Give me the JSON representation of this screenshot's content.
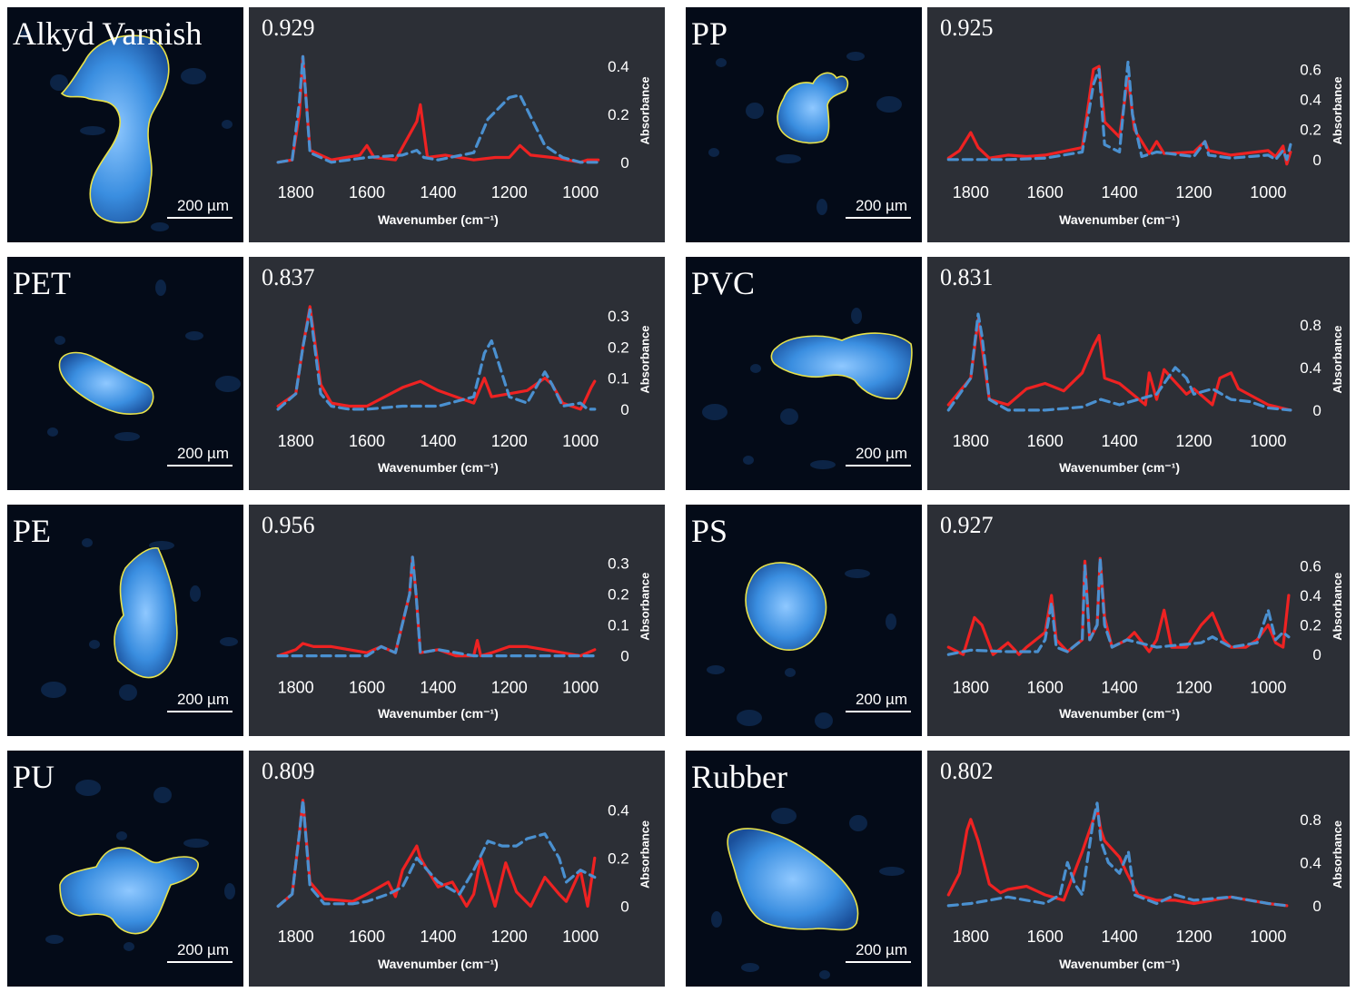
{
  "figure": {
    "scale_label": "200 µm",
    "xlabel": "Wavenumber (cm⁻¹)",
    "ylabel": "Absorbance",
    "series_colors": {
      "measured": "#ee2222",
      "reference": "#4a90d0"
    },
    "particle_color": "#3a8ee0",
    "outline_color": "#e8e24a"
  },
  "chart_data": [
    {
      "type": "line",
      "name": "Alkyd Varnish",
      "score": "0.929",
      "xlabel": "Wavenumber (cm⁻¹)",
      "ylabel": "Absorbance",
      "xlim": [
        1850,
        950
      ],
      "ylim": [
        -0.02,
        0.45
      ],
      "xticks": [
        1800,
        1600,
        1400,
        1200,
        1000
      ],
      "yticks": [
        0,
        0.2,
        0.4
      ],
      "series": [
        {
          "x": [
            1850,
            1810,
            1790,
            1780,
            1760,
            1700,
            1620,
            1600,
            1580,
            1520,
            1460,
            1450,
            1430,
            1380,
            1300,
            1240,
            1200,
            1170,
            1140,
            1080,
            1000,
            980,
            950
          ],
          "y": [
            0,
            0.01,
            0.2,
            0.44,
            0.05,
            0.01,
            0.03,
            0.07,
            0.02,
            0.01,
            0.17,
            0.24,
            0.02,
            0.03,
            0.01,
            0.02,
            0.02,
            0.07,
            0.03,
            0.02,
            0.0,
            0.01,
            0.01
          ]
        },
        {
          "x": [
            1850,
            1810,
            1790,
            1780,
            1760,
            1700,
            1600,
            1500,
            1460,
            1440,
            1400,
            1300,
            1260,
            1200,
            1170,
            1150,
            1100,
            1050,
            1000,
            950
          ],
          "y": [
            0,
            0.01,
            0.25,
            0.44,
            0.04,
            0.0,
            0.02,
            0.03,
            0.05,
            0.02,
            0.01,
            0.04,
            0.18,
            0.27,
            0.28,
            0.22,
            0.07,
            0.02,
            0.0,
            0.0
          ]
        }
      ]
    },
    {
      "type": "line",
      "name": "PP",
      "score": "0.925",
      "xlim": [
        1860,
        940
      ],
      "ylim": [
        -0.05,
        0.7
      ],
      "xticks": [
        1800,
        1600,
        1400,
        1200,
        1000
      ],
      "yticks": [
        0,
        0.2,
        0.4,
        0.6
      ],
      "series": [
        {
          "x": [
            1860,
            1830,
            1800,
            1780,
            1750,
            1700,
            1650,
            1600,
            1500,
            1470,
            1455,
            1440,
            1400,
            1377,
            1360,
            1320,
            1300,
            1280,
            1200,
            1170,
            1160,
            1100,
            1000,
            980,
            960,
            950,
            940
          ],
          "y": [
            0.01,
            0.06,
            0.18,
            0.08,
            0.01,
            0.03,
            0.02,
            0.03,
            0.08,
            0.6,
            0.62,
            0.25,
            0.15,
            0.55,
            0.2,
            0.04,
            0.12,
            0.04,
            0.05,
            0.12,
            0.06,
            0.03,
            0.06,
            0.02,
            0.09,
            -0.03,
            0.05
          ]
        },
        {
          "x": [
            1860,
            1700,
            1600,
            1500,
            1470,
            1455,
            1440,
            1400,
            1377,
            1365,
            1340,
            1300,
            1200,
            1170,
            1160,
            1100,
            1000,
            980,
            960,
            950,
            940
          ],
          "y": [
            0,
            0.0,
            0.01,
            0.05,
            0.5,
            0.6,
            0.1,
            0.05,
            0.65,
            0.3,
            0.02,
            0.05,
            0.02,
            0.12,
            0.03,
            0.01,
            0.03,
            0.0,
            0.06,
            0.0,
            0.1
          ]
        }
      ]
    },
    {
      "type": "line",
      "name": "PET",
      "score": "0.837",
      "xlim": [
        1850,
        950
      ],
      "ylim": [
        -0.02,
        0.34
      ],
      "xticks": [
        1800,
        1600,
        1400,
        1200,
        1000
      ],
      "yticks": [
        0,
        0.1,
        0.2,
        0.3
      ],
      "series": [
        {
          "x": [
            1850,
            1800,
            1780,
            1760,
            1730,
            1700,
            1650,
            1600,
            1500,
            1450,
            1400,
            1350,
            1300,
            1270,
            1250,
            1200,
            1150,
            1100,
            1080,
            1050,
            1000,
            990,
            970,
            960
          ],
          "y": [
            0.01,
            0.05,
            0.2,
            0.33,
            0.08,
            0.02,
            0.01,
            0.01,
            0.07,
            0.09,
            0.06,
            0.04,
            0.02,
            0.1,
            0.04,
            0.05,
            0.06,
            0.1,
            0.08,
            0.02,
            0.0,
            0.02,
            0.07,
            0.09
          ]
        },
        {
          "x": [
            1850,
            1800,
            1780,
            1760,
            1730,
            1700,
            1650,
            1600,
            1500,
            1400,
            1300,
            1270,
            1250,
            1200,
            1150,
            1100,
            1080,
            1050,
            1000,
            980,
            960
          ],
          "y": [
            0,
            0.05,
            0.2,
            0.32,
            0.05,
            0.01,
            0.0,
            0.0,
            0.01,
            0.01,
            0.04,
            0.18,
            0.22,
            0.04,
            0.02,
            0.12,
            0.08,
            0.01,
            0.02,
            0.0,
            0.0
          ]
        }
      ]
    },
    {
      "type": "line",
      "name": "PVC",
      "score": "0.831",
      "xlim": [
        1860,
        940
      ],
      "ylim": [
        -0.05,
        1.0
      ],
      "xticks": [
        1800,
        1600,
        1400,
        1200,
        1000
      ],
      "yticks": [
        0,
        0.4,
        0.8
      ],
      "series": [
        {
          "x": [
            1860,
            1800,
            1780,
            1770,
            1750,
            1700,
            1650,
            1600,
            1550,
            1500,
            1470,
            1455,
            1440,
            1400,
            1330,
            1320,
            1300,
            1280,
            1260,
            1220,
            1200,
            1150,
            1130,
            1100,
            1080,
            1000,
            940
          ],
          "y": [
            0.05,
            0.3,
            0.85,
            0.6,
            0.1,
            0.05,
            0.2,
            0.25,
            0.18,
            0.35,
            0.6,
            0.7,
            0.3,
            0.25,
            0.05,
            0.35,
            0.1,
            0.38,
            0.3,
            0.15,
            0.2,
            0.05,
            0.3,
            0.35,
            0.2,
            0.05,
            0.0
          ]
        },
        {
          "x": [
            1860,
            1800,
            1780,
            1770,
            1750,
            1700,
            1650,
            1600,
            1500,
            1450,
            1400,
            1300,
            1260,
            1250,
            1220,
            1200,
            1150,
            1100,
            1050,
            1000,
            940
          ],
          "y": [
            0,
            0.3,
            0.9,
            0.7,
            0.1,
            0.0,
            0.0,
            0.0,
            0.03,
            0.1,
            0.05,
            0.15,
            0.35,
            0.4,
            0.3,
            0.15,
            0.2,
            0.1,
            0.08,
            0.02,
            0.0
          ]
        }
      ]
    },
    {
      "type": "line",
      "name": "PE",
      "score": "0.956",
      "xlim": [
        1850,
        950
      ],
      "ylim": [
        -0.02,
        0.34
      ],
      "xticks": [
        1800,
        1600,
        1400,
        1200,
        1000
      ],
      "yticks": [
        0,
        0.1,
        0.2,
        0.3
      ],
      "series": [
        {
          "x": [
            1850,
            1800,
            1780,
            1750,
            1700,
            1650,
            1600,
            1560,
            1520,
            1480,
            1472,
            1462,
            1450,
            1400,
            1350,
            1300,
            1290,
            1280,
            1250,
            1200,
            1150,
            1100,
            1000,
            960
          ],
          "y": [
            0.0,
            0.02,
            0.04,
            0.03,
            0.03,
            0.02,
            0.01,
            0.03,
            0.01,
            0.2,
            0.32,
            0.2,
            0.01,
            0.02,
            0.0,
            0.0,
            0.05,
            0.0,
            0.01,
            0.03,
            0.03,
            0.02,
            0.0,
            0.02
          ]
        },
        {
          "x": [
            1850,
            1700,
            1600,
            1560,
            1520,
            1480,
            1472,
            1462,
            1450,
            1400,
            1300,
            1200,
            1000,
            960
          ],
          "y": [
            0.0,
            0.0,
            0.0,
            0.03,
            0.01,
            0.2,
            0.32,
            0.2,
            0.01,
            0.02,
            0.0,
            0.0,
            0.0,
            0.0
          ]
        }
      ]
    },
    {
      "type": "line",
      "name": "PS",
      "score": "0.927",
      "xlim": [
        1860,
        940
      ],
      "ylim": [
        -0.05,
        0.7
      ],
      "xticks": [
        1800,
        1600,
        1400,
        1200,
        1000
      ],
      "yticks": [
        0,
        0.2,
        0.4,
        0.6
      ],
      "series": [
        {
          "x": [
            1860,
            1820,
            1790,
            1770,
            1740,
            1700,
            1670,
            1650,
            1600,
            1583,
            1570,
            1540,
            1500,
            1493,
            1480,
            1460,
            1452,
            1440,
            1420,
            1380,
            1360,
            1320,
            1300,
            1280,
            1260,
            1220,
            1180,
            1150,
            1120,
            1100,
            1060,
            1030,
            1000,
            980,
            960,
            945
          ],
          "y": [
            0.05,
            0.0,
            0.25,
            0.2,
            0.0,
            0.08,
            0.0,
            0.05,
            0.15,
            0.4,
            0.1,
            0.02,
            0.1,
            0.63,
            0.1,
            0.2,
            0.65,
            0.25,
            0.05,
            0.1,
            0.15,
            0.02,
            0.1,
            0.3,
            0.05,
            0.05,
            0.2,
            0.28,
            0.1,
            0.05,
            0.05,
            0.1,
            0.2,
            0.08,
            0.05,
            0.4
          ]
        },
        {
          "x": [
            1860,
            1800,
            1700,
            1620,
            1600,
            1583,
            1570,
            1540,
            1500,
            1493,
            1480,
            1460,
            1452,
            1440,
            1420,
            1380,
            1300,
            1180,
            1150,
            1100,
            1030,
            1000,
            980,
            960,
            945
          ],
          "y": [
            0.0,
            0.03,
            0.02,
            0.02,
            0.1,
            0.35,
            0.05,
            0.02,
            0.1,
            0.6,
            0.1,
            0.2,
            0.65,
            0.2,
            0.05,
            0.1,
            0.05,
            0.08,
            0.12,
            0.05,
            0.08,
            0.3,
            0.1,
            0.15,
            0.12
          ]
        }
      ]
    },
    {
      "type": "line",
      "name": "PU",
      "score": "0.809",
      "xlim": [
        1850,
        950
      ],
      "ylim": [
        -0.02,
        0.45
      ],
      "xticks": [
        1800,
        1600,
        1400,
        1200,
        1000
      ],
      "yticks": [
        0,
        0.2,
        0.4
      ],
      "series": [
        {
          "x": [
            1850,
            1810,
            1790,
            1780,
            1760,
            1720,
            1640,
            1600,
            1540,
            1520,
            1500,
            1460,
            1450,
            1430,
            1400,
            1360,
            1320,
            1300,
            1280,
            1260,
            1240,
            1210,
            1180,
            1140,
            1100,
            1060,
            1040,
            1000,
            980,
            960
          ],
          "y": [
            0.0,
            0.05,
            0.3,
            0.44,
            0.1,
            0.03,
            0.02,
            0.05,
            0.1,
            0.04,
            0.15,
            0.25,
            0.2,
            0.15,
            0.08,
            0.1,
            0.0,
            0.05,
            0.2,
            0.1,
            0.0,
            0.18,
            0.06,
            0.0,
            0.12,
            0.05,
            0.02,
            0.15,
            0.0,
            0.2
          ]
        },
        {
          "x": [
            1850,
            1810,
            1790,
            1780,
            1760,
            1720,
            1640,
            1600,
            1540,
            1500,
            1460,
            1430,
            1400,
            1340,
            1300,
            1260,
            1220,
            1180,
            1150,
            1100,
            1060,
            1040,
            1000,
            960
          ],
          "y": [
            0.0,
            0.05,
            0.3,
            0.44,
            0.08,
            0.01,
            0.01,
            0.02,
            0.05,
            0.08,
            0.2,
            0.15,
            0.1,
            0.05,
            0.15,
            0.27,
            0.25,
            0.25,
            0.28,
            0.3,
            0.2,
            0.1,
            0.15,
            0.12
          ]
        }
      ]
    },
    {
      "type": "line",
      "name": "Rubber",
      "score": "0.802",
      "xlim": [
        1860,
        940
      ],
      "ylim": [
        -0.05,
        1.0
      ],
      "xticks": [
        1800,
        1600,
        1400,
        1200,
        1000
      ],
      "yticks": [
        0,
        0.4,
        0.8
      ],
      "series": [
        {
          "x": [
            1860,
            1830,
            1810,
            1800,
            1780,
            1750,
            1720,
            1700,
            1650,
            1600,
            1550,
            1500,
            1460,
            1450,
            1440,
            1400,
            1380,
            1350,
            1300,
            1250,
            1200,
            1150,
            1100,
            1050,
            1000,
            950
          ],
          "y": [
            0.1,
            0.3,
            0.7,
            0.8,
            0.6,
            0.2,
            0.12,
            0.15,
            0.18,
            0.1,
            0.05,
            0.5,
            0.9,
            0.7,
            0.6,
            0.45,
            0.3,
            0.1,
            0.05,
            0.05,
            0.02,
            0.05,
            0.08,
            0.05,
            0.02,
            0.0
          ]
        },
        {
          "x": [
            1860,
            1800,
            1750,
            1700,
            1650,
            1600,
            1560,
            1540,
            1520,
            1500,
            1470,
            1460,
            1450,
            1430,
            1400,
            1376,
            1360,
            1300,
            1250,
            1200,
            1100,
            1000,
            950
          ],
          "y": [
            0.0,
            0.02,
            0.05,
            0.08,
            0.05,
            0.02,
            0.1,
            0.4,
            0.2,
            0.1,
            0.8,
            0.95,
            0.6,
            0.4,
            0.3,
            0.5,
            0.1,
            0.02,
            0.1,
            0.05,
            0.08,
            0.02,
            0.0
          ]
        }
      ]
    }
  ],
  "micrographs": [
    {
      "name": "Alkyd Varnish"
    },
    {
      "name": "PP"
    },
    {
      "name": "PET"
    },
    {
      "name": "PVC"
    },
    {
      "name": "PE"
    },
    {
      "name": "PS"
    },
    {
      "name": "PU"
    },
    {
      "name": "Rubber"
    }
  ]
}
